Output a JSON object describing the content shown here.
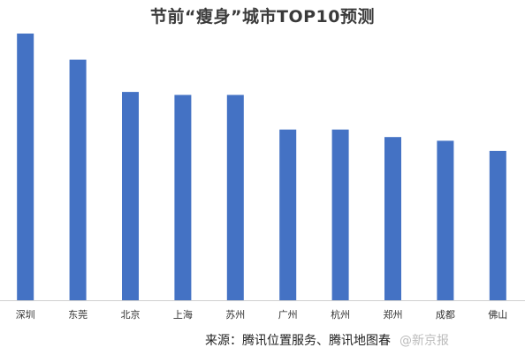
{
  "chart_data": {
    "type": "bar",
    "title": "节前“瘦身”城市TOP10预测",
    "categories": [
      "深圳",
      "东莞",
      "北京",
      "上海",
      "苏州",
      "广州",
      "杭州",
      "郑州",
      "成都",
      "佛山"
    ],
    "values": [
      100,
      90.2,
      78.1,
      77.0,
      77.0,
      64.0,
      64.0,
      61.2,
      59.8,
      56.0
    ],
    "xlabel": "",
    "ylabel": "",
    "ylim": [
      0,
      100
    ],
    "grid": false,
    "legend": "none",
    "bar_color": "#4472C4"
  },
  "source": {
    "text": "来源：腾讯位置服务、腾讯地图春"
  },
  "watermark": {
    "text": "@新京报"
  },
  "colors": {
    "bar": "#4472C4",
    "axis": "#d0d0d0",
    "tick_label": "#333333",
    "title": "#3a3a3a"
  }
}
